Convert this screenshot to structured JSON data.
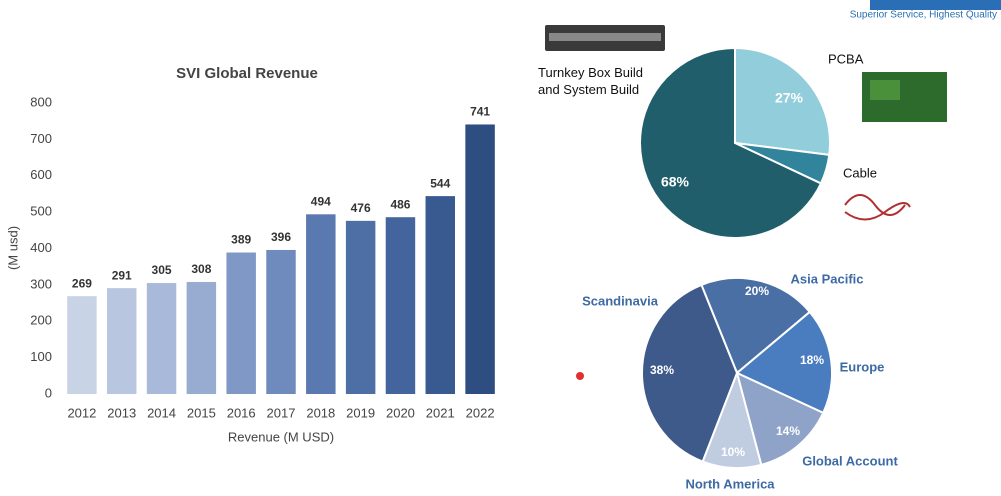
{
  "header": {
    "tagline": "Superior Service, Highest Quality"
  },
  "chart_data": [
    {
      "type": "bar",
      "title": "SVI Global Revenue",
      "y_label": "(M usd)",
      "x_label": "Revenue (M USD)",
      "categories": [
        "2012",
        "2013",
        "2014",
        "2015",
        "2016",
        "2017",
        "2018",
        "2019",
        "2020",
        "2021",
        "2022"
      ],
      "values": [
        269,
        291,
        305,
        308,
        389,
        396,
        494,
        476,
        486,
        544,
        741
      ],
      "colors": [
        "#c9d3e6",
        "#b9c6e0",
        "#a9b9d9",
        "#98acd2",
        "#7f98c6",
        "#6f8bbd",
        "#5a79b0",
        "#4e6ea6",
        "#43649c",
        "#395a90",
        "#2e4e82"
      ],
      "ylim": [
        0,
        800
      ],
      "yticks": [
        0,
        100,
        200,
        300,
        400,
        500,
        600,
        700,
        800
      ],
      "grid": false
    },
    {
      "type": "pie",
      "categories": [
        "PCBA",
        "Cable",
        "Turnkey Box Build and System Build"
      ],
      "values": [
        27,
        5,
        68
      ],
      "value_labels": [
        "27%",
        null,
        "68%"
      ],
      "colors": [
        "#92cddc",
        "#31849b",
        "#215e6b"
      ]
    },
    {
      "type": "pie",
      "categories": [
        "Asia Pacific",
        "Europe",
        "Global Account",
        "North America",
        "Scandinavia"
      ],
      "values": [
        20,
        18,
        14,
        10,
        38
      ],
      "value_labels": [
        "20%",
        "18%",
        "14%",
        "10%",
        "38%"
      ],
      "colors": [
        "#4a6fa5",
        "#4a7cc0",
        "#8fa3c8",
        "#c0cce0",
        "#3d5a8a"
      ]
    }
  ]
}
